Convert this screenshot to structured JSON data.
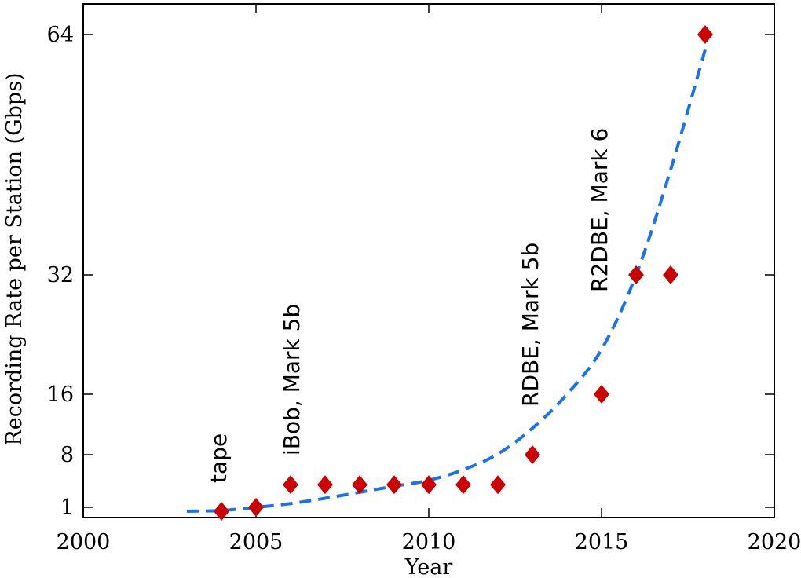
{
  "chart_data": {
    "type": "scatter",
    "xlabel": "Year",
    "ylabel": "Recording Rate per Station (Gbps)",
    "xlim": [
      2000,
      2020
    ],
    "x_ticks": [
      "2000",
      "2005",
      "2010",
      "2015",
      "2020"
    ],
    "y_scale": "log2-like",
    "y_ticks": [
      "1",
      "8",
      "16",
      "32",
      "64"
    ],
    "grid": false,
    "series": [
      {
        "marker": "diamond",
        "color": "#cc0000",
        "x": [
          2004,
          2005,
          2006,
          2007,
          2008,
          2009,
          2010,
          2011,
          2012,
          2013,
          2015,
          2016,
          2017,
          2018
        ],
        "y": [
          0.5,
          1,
          4,
          4,
          4,
          4,
          4,
          4,
          4,
          8,
          16,
          32,
          32,
          64
        ]
      }
    ],
    "fit_curve": {
      "style": "dashed",
      "color": "#1a73e8",
      "x": [
        2003,
        2004,
        2005,
        2006,
        2007,
        2008,
        2009,
        2010,
        2011,
        2012,
        2013,
        2014,
        2015,
        2016,
        2017,
        2018
      ],
      "y": [
        0.5,
        0.6,
        1.0,
        1.5,
        2.2,
        3.0,
        3.8,
        4.6,
        6.0,
        8.1,
        11.5,
        16.0,
        22.0,
        32.0,
        46.0,
        62.0
      ]
    },
    "annotations": [
      {
        "text": "tape",
        "x": 2004
      },
      {
        "text": "iBob, Mark 5b",
        "x": 2006
      },
      {
        "text": "RDBE, Mark 5b",
        "x": 2013
      },
      {
        "text": "R2DBE, Mark 6",
        "x": 2015
      }
    ]
  }
}
